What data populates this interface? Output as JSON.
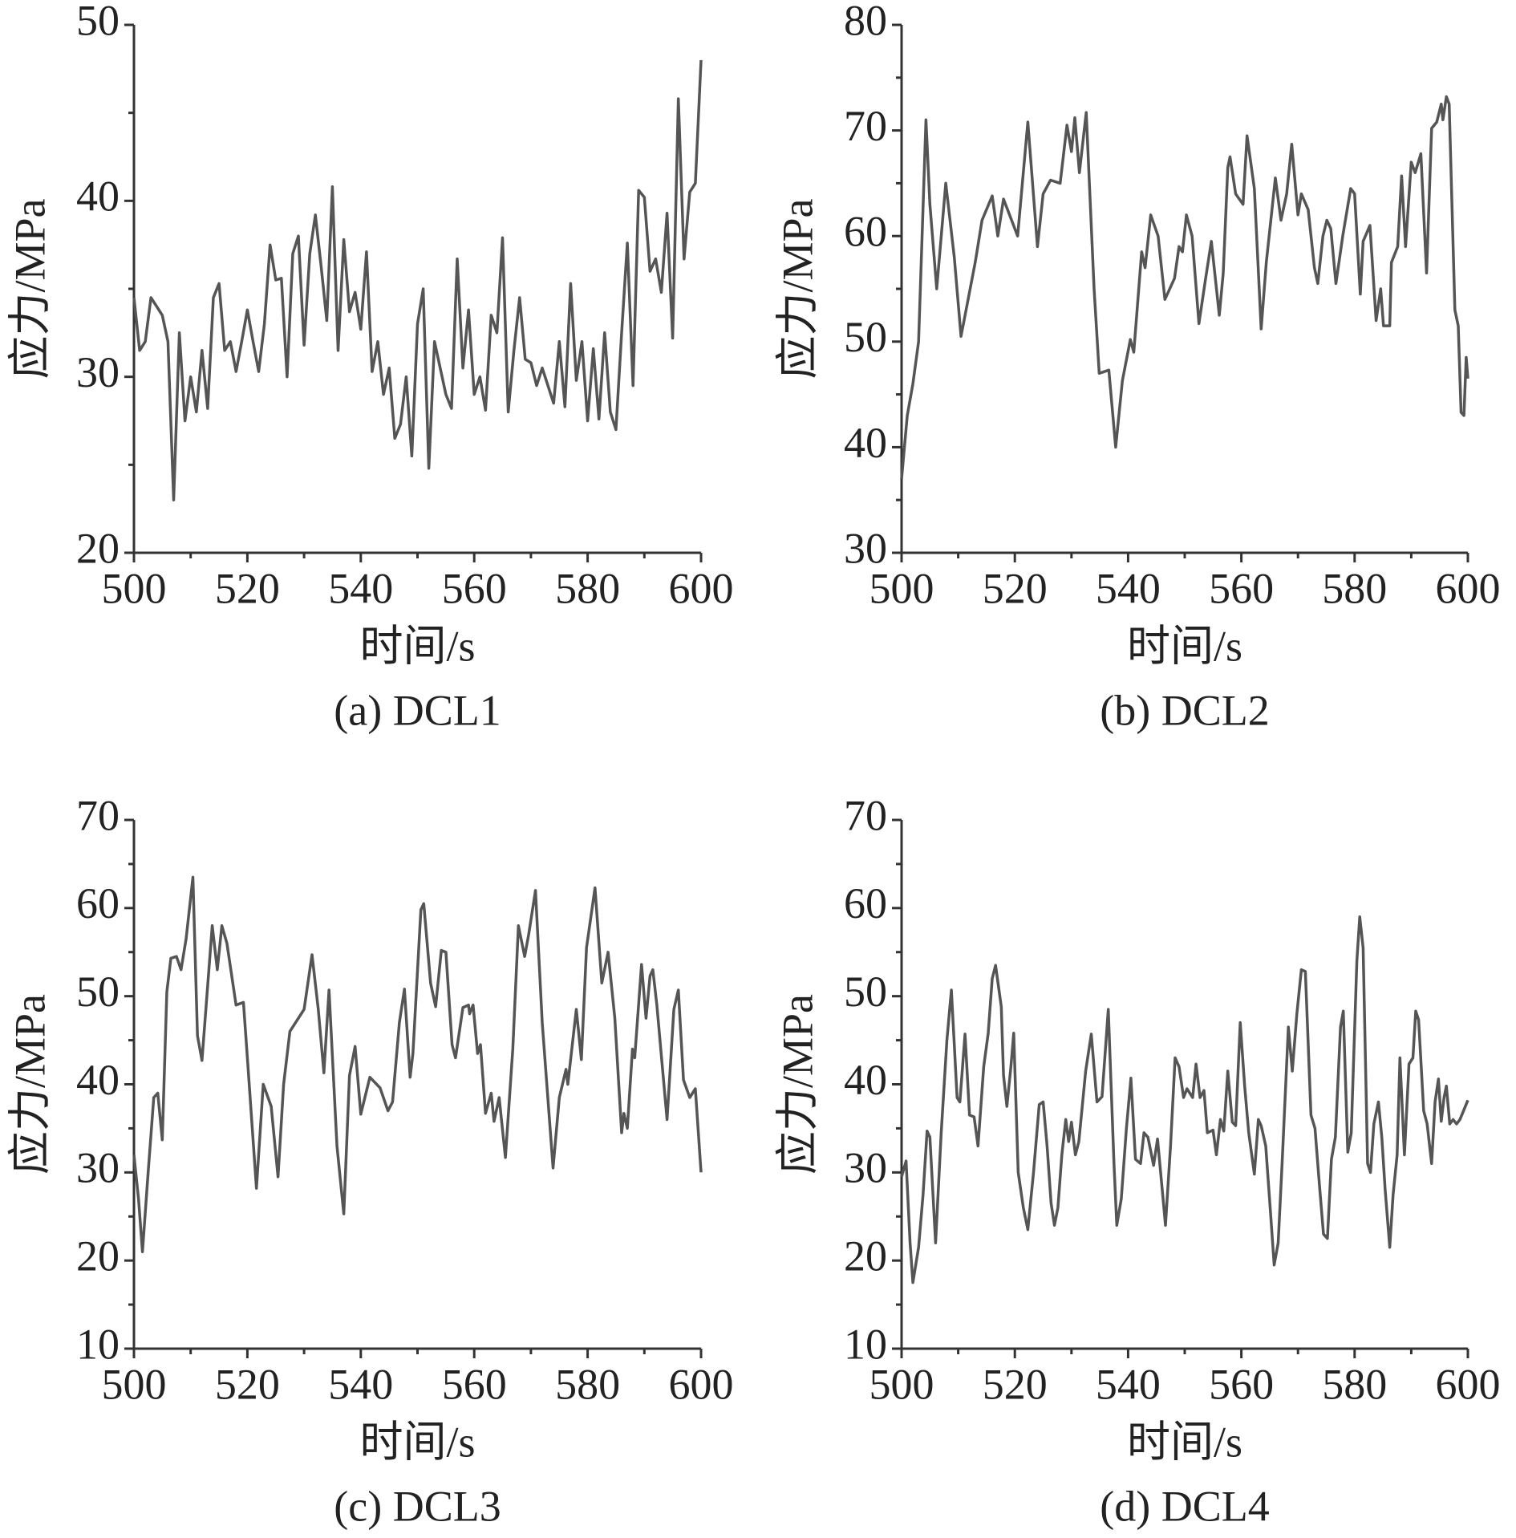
{
  "chart_data": [
    {
      "type": "line",
      "title": "(a) DCL1",
      "xlabel": "时间/s",
      "ylabel": "应力/MPa",
      "color": "#555555",
      "xlim": [
        500,
        600
      ],
      "xticks": [
        500,
        520,
        540,
        560,
        580,
        600
      ],
      "xminor": [
        510,
        530,
        550,
        570,
        590
      ],
      "ylim": [
        20,
        50
      ],
      "yticks": [
        20,
        30,
        40,
        50
      ],
      "yminor": [
        25,
        35,
        45
      ],
      "x": [
        500,
        501,
        502,
        503,
        504,
        505,
        506,
        507,
        508,
        509,
        510,
        511,
        512,
        513,
        514,
        515,
        516,
        517,
        518,
        519,
        520,
        521,
        522,
        523,
        524,
        525,
        526,
        527,
        528,
        529,
        530,
        531,
        532,
        533,
        534,
        535,
        536,
        537,
        538,
        539,
        540,
        541,
        542,
        543,
        544,
        545,
        546,
        547,
        548,
        549,
        550,
        551,
        552,
        553,
        554,
        555,
        556,
        557,
        558,
        559,
        560,
        561,
        562,
        563,
        564,
        565,
        566,
        567,
        568,
        569,
        570,
        571,
        572,
        573,
        574,
        575,
        576,
        577,
        578,
        579,
        580,
        581,
        582,
        583,
        584,
        585,
        586,
        587,
        588,
        589,
        590,
        591,
        592,
        593,
        594,
        595,
        596,
        597,
        598,
        599,
        600
      ],
      "values": [
        34.5,
        31.5,
        32,
        34.5,
        34,
        33.5,
        32,
        23,
        32.5,
        27.5,
        30,
        28,
        31.5,
        28.2,
        34.5,
        35.3,
        31.5,
        32,
        30.3,
        32,
        33.8,
        32,
        30.3,
        33,
        37.5,
        35.5,
        35.6,
        30,
        37,
        38,
        31.8,
        37,
        39.2,
        36.3,
        33.2,
        40.8,
        31.5,
        37.8,
        33.7,
        34.8,
        32.7,
        37.1,
        30.3,
        32,
        29,
        30.5,
        26.5,
        27.3,
        30,
        25.5,
        33,
        35,
        24.8,
        32,
        30.5,
        29,
        28.2,
        36.7,
        30.5,
        33.8,
        29,
        30,
        28.1,
        33.5,
        32.5,
        37.9,
        28,
        31.5,
        34.5,
        31,
        30.8,
        29.5,
        30.5,
        29.5,
        28.5,
        32,
        28.3,
        35.3,
        29.8,
        32,
        27.5,
        31.6,
        27.6,
        32.5,
        28,
        27,
        32.5,
        37.6,
        29.5,
        40.6,
        40.2,
        36,
        36.7,
        34.8,
        39.3,
        32.2,
        45.8,
        36.7,
        40.5,
        41,
        48
      ]
    },
    {
      "type": "line",
      "title": "(b) DCL2",
      "xlabel": "时间/s",
      "ylabel": "应力/MPa",
      "color": "#555555",
      "xlim": [
        500,
        600
      ],
      "xticks": [
        500,
        520,
        540,
        560,
        580,
        600
      ],
      "xminor": [
        510,
        530,
        550,
        570,
        590
      ],
      "ylim": [
        30,
        80
      ],
      "yticks": [
        30,
        40,
        50,
        60,
        70,
        80
      ],
      "yminor": [
        35,
        45,
        55,
        65,
        75
      ],
      "x": [
        500,
        501,
        502,
        503,
        504.3,
        505,
        506.2,
        507.8,
        509.3,
        510.5,
        513,
        514.2,
        516,
        517,
        518,
        520.5,
        522.3,
        524,
        525,
        526.3,
        528,
        529.2,
        530,
        530.6,
        531.4,
        532.6,
        534,
        534.9,
        536.6,
        537.8,
        539,
        540.4,
        541,
        542.4,
        543,
        544,
        545.3,
        546.5,
        548.2,
        549,
        549.6,
        550.3,
        551.3,
        552.5,
        553.7,
        554.7,
        556.1,
        556.8,
        557.6,
        558,
        559,
        560.3,
        561,
        562.3,
        563.5,
        564.4,
        566,
        567,
        568,
        568.9,
        570,
        570.6,
        571.8,
        572.9,
        573.5,
        574.4,
        575.1,
        575.8,
        576.7,
        577.9,
        579.3,
        580,
        581,
        581.5,
        582.7,
        583.8,
        584.6,
        585.1,
        586.2,
        586.5,
        587.6,
        588.3,
        589,
        590,
        590.7,
        591.7,
        592.7,
        593.6,
        594.5,
        595.3,
        595.6,
        596.2,
        596.7,
        597.7,
        598.3,
        598.8,
        599.3,
        599.7,
        600
      ],
      "values": [
        37,
        43,
        46,
        50,
        71,
        63,
        55,
        65,
        58,
        50.5,
        57.5,
        61.5,
        63.8,
        60,
        63.5,
        60,
        70.8,
        59,
        64,
        65.3,
        65,
        70.5,
        68,
        71.2,
        66,
        71.7,
        55,
        47,
        47.3,
        40,
        46.3,
        50.2,
        49,
        58.5,
        57,
        62,
        60,
        54,
        56,
        59,
        58.5,
        62,
        60,
        51.7,
        56,
        59.5,
        52.5,
        56.5,
        66.5,
        67.5,
        64,
        63,
        69.5,
        64.5,
        51.2,
        57.5,
        65.5,
        61.5,
        64,
        68.7,
        62,
        64,
        62.5,
        57,
        55.5,
        60,
        61.5,
        60.7,
        55.5,
        60,
        64.5,
        64,
        54.5,
        59.5,
        61,
        52,
        55,
        51.5,
        51.5,
        57.5,
        59,
        65.7,
        59,
        67,
        66,
        67.8,
        56.5,
        70.2,
        70.8,
        72.5,
        71,
        73.2,
        72.5,
        53,
        51.5,
        43.3,
        43,
        48.5,
        46.5
      ]
    },
    {
      "type": "line",
      "title": "(c) DCL3",
      "xlabel": "时间/s",
      "ylabel": "应力/MPa",
      "color": "#555555",
      "xlim": [
        500,
        600
      ],
      "xticks": [
        500,
        520,
        540,
        560,
        580,
        600
      ],
      "xminor": [
        510,
        530,
        550,
        570,
        590
      ],
      "ylim": [
        10,
        70
      ],
      "yticks": [
        10,
        20,
        30,
        40,
        50,
        60,
        70
      ],
      "yminor": [
        15,
        25,
        35,
        45,
        55,
        65
      ],
      "x": [
        500,
        500.8,
        501.5,
        502.5,
        503.5,
        504.2,
        505,
        505.8,
        506.5,
        507.5,
        508.3,
        509.2,
        510.4,
        511.2,
        512,
        513.8,
        514.7,
        515.5,
        516.4,
        518,
        519.3,
        520,
        521.6,
        522.8,
        524.2,
        525.4,
        526.4,
        527.5,
        528.5,
        530,
        531.4,
        532.5,
        533.5,
        534.4,
        535.8,
        537,
        538,
        539,
        540,
        541.6,
        543.4,
        544.8,
        545.6,
        546.8,
        547.7,
        548.7,
        549.2,
        550.6,
        551.1,
        552.3,
        553.2,
        554.2,
        555,
        556.1,
        556.7,
        558,
        559,
        559.2,
        559.8,
        560.6,
        561.1,
        562,
        563,
        563.5,
        564.4,
        565.5,
        566.8,
        567.8,
        568.9,
        569.6,
        570.8,
        572,
        573.9,
        575,
        576.2,
        576.5,
        578,
        578.9,
        579.8,
        581.3,
        582.5,
        583.6,
        584.8,
        586,
        586.4,
        587,
        587.9,
        588.3,
        589.5,
        590.3,
        591,
        591.5,
        592.2,
        594,
        595.2,
        596,
        596.9,
        598,
        599,
        600
      ],
      "values": [
        32,
        27,
        21,
        30,
        38.5,
        39,
        33.7,
        50.5,
        54.3,
        54.5,
        53,
        56.5,
        63.5,
        45.5,
        42.7,
        58,
        53,
        58,
        56,
        49,
        49.3,
        43,
        28.2,
        40,
        37.5,
        29.5,
        40,
        46,
        47,
        48.5,
        54.7,
        48.5,
        41.3,
        50.7,
        33,
        25.3,
        41,
        44.3,
        36.6,
        40.8,
        39.6,
        37,
        38,
        47,
        50.8,
        40.8,
        43.5,
        59.8,
        60.5,
        51.5,
        48.8,
        55.2,
        55,
        44.5,
        43,
        48.7,
        49,
        48,
        49,
        43.5,
        44.5,
        36.7,
        39,
        35.8,
        38.5,
        31.7,
        44,
        58,
        54.5,
        57,
        62,
        47,
        30.5,
        38.5,
        41.7,
        40,
        48.5,
        42.8,
        55.5,
        62.3,
        51.5,
        55,
        47.5,
        34.5,
        36.7,
        35,
        44,
        43,
        53.6,
        47.5,
        52.3,
        53,
        49,
        36,
        48.5,
        50.7,
        40.5,
        38.5,
        39.5,
        30
      ]
    },
    {
      "type": "line",
      "title": "(d) DCL4",
      "xlabel": "时间/s",
      "ylabel": "应力/MPa",
      "color": "#555555",
      "xlim": [
        500,
        600
      ],
      "xticks": [
        500,
        520,
        540,
        560,
        580,
        600
      ],
      "xminor": [
        510,
        530,
        550,
        570,
        590
      ],
      "ylim": [
        10,
        70
      ],
      "yticks": [
        10,
        20,
        30,
        40,
        50,
        60,
        70
      ],
      "yminor": [
        15,
        25,
        35,
        45,
        55,
        65
      ],
      "x": [
        500,
        500.8,
        501.5,
        502,
        503,
        503.8,
        504.5,
        505,
        506,
        507,
        508,
        508.8,
        509.8,
        510.3,
        511.2,
        512,
        512.8,
        513.5,
        514.5,
        515.3,
        516,
        516.6,
        517.6,
        518,
        518.6,
        519.3,
        519.8,
        520.6,
        521.5,
        522.3,
        523.3,
        524.3,
        525,
        525.7,
        526.4,
        527,
        527.6,
        528.3,
        529,
        529.5,
        530,
        530.7,
        531.3,
        532.5,
        533.5,
        534.5,
        535.4,
        536.5,
        537.5,
        538,
        538.8,
        539.7,
        540.5,
        541.3,
        542.2,
        542.8,
        543.5,
        544.5,
        545.2,
        546.1,
        546.6,
        547.5,
        548.3,
        549,
        549.8,
        550.4,
        551.4,
        552,
        552.7,
        553.4,
        554,
        555,
        555.6,
        556.3,
        556.9,
        557.6,
        558.4,
        559,
        559.8,
        560.6,
        561.3,
        562.3,
        563,
        563.5,
        564.3,
        565.2,
        565.8,
        566.5,
        567.2,
        568.3,
        569,
        569.8,
        570.6,
        571.3,
        572.3,
        573,
        573.8,
        574.5,
        575.2,
        575.9,
        576.6,
        577.5,
        578,
        578.8,
        579.4,
        580.4,
        580.9,
        581.5,
        582.3,
        582.8,
        583.4,
        584.2,
        584.8,
        585.4,
        586.2,
        586.8,
        587.5,
        588,
        588.8,
        589.6,
        590.3,
        590.8,
        591.3,
        592.2,
        592.8,
        593.6,
        594.2,
        594.8,
        595.3,
        595.8,
        596.2,
        596.8,
        597.4,
        598,
        598.6,
        600
      ],
      "values": [
        29.5,
        31.3,
        22,
        17.5,
        21.5,
        27.5,
        34.7,
        34,
        22,
        34.5,
        45,
        50.7,
        38.5,
        38,
        45.7,
        36.5,
        36.3,
        33,
        42,
        45.8,
        52,
        53.5,
        48.8,
        41,
        37.5,
        42,
        45.8,
        30,
        26,
        23.5,
        30,
        37.7,
        38,
        33,
        26.5,
        24,
        26,
        32,
        36,
        33.5,
        35.7,
        32,
        33.5,
        41.5,
        45.7,
        38,
        38.6,
        48.5,
        31,
        24,
        27,
        35,
        40.7,
        31.5,
        31,
        34.5,
        34,
        30.8,
        33.8,
        27.5,
        24,
        33,
        43,
        42,
        38.5,
        39.5,
        38.5,
        42.3,
        38.5,
        39.3,
        34.5,
        34.8,
        32,
        36,
        34.7,
        41.5,
        35.7,
        35.3,
        47,
        39.7,
        34.5,
        29.8,
        36,
        35.3,
        33,
        25,
        19.5,
        22,
        31,
        46.5,
        41.5,
        48,
        53,
        52.8,
        36.5,
        35,
        28.5,
        23,
        22.5,
        31.5,
        34,
        46.5,
        48.3,
        32.3,
        34.5,
        54,
        59,
        55.5,
        31,
        30,
        35.5,
        38,
        34,
        28,
        21.5,
        27.5,
        32,
        43,
        32,
        42.3,
        43,
        48.3,
        47.3,
        37,
        35.5,
        31,
        38,
        40.6,
        35.8,
        38.5,
        39.8,
        35.5,
        36,
        35.5,
        36,
        38.2
      ]
    }
  ]
}
